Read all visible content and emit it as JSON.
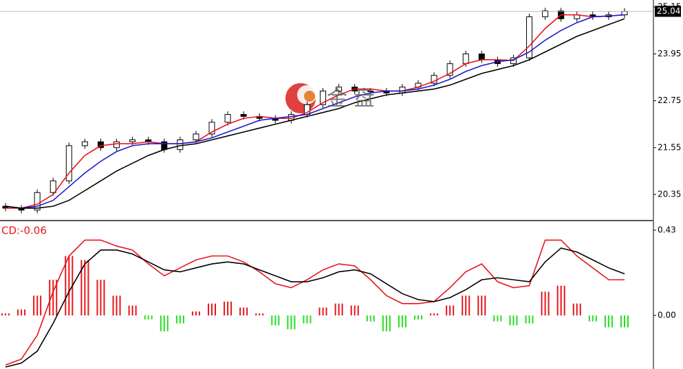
{
  "chart_data": [
    {
      "type": "candlestick",
      "open": [
        20.05,
        20.0,
        19.95,
        20.4,
        20.7,
        21.6,
        21.7,
        21.55,
        21.7,
        21.75,
        21.7,
        21.5,
        21.75,
        21.9,
        22.2,
        22.4,
        22.35,
        22.3,
        22.25,
        22.4,
        22.65,
        23.0,
        23.1,
        23.0,
        23.0,
        22.95,
        23.1,
        23.2,
        23.4,
        23.7,
        23.95,
        23.8,
        23.7,
        23.85,
        24.9,
        25.05,
        24.85,
        24.95,
        24.9,
        24.95
      ],
      "high": [
        20.13,
        20.08,
        20.48,
        20.78,
        21.68,
        21.78,
        21.78,
        21.78,
        21.83,
        21.83,
        21.78,
        21.83,
        21.98,
        22.28,
        22.48,
        22.48,
        22.43,
        22.38,
        22.48,
        22.73,
        23.08,
        23.18,
        23.18,
        23.08,
        23.08,
        23.18,
        23.28,
        23.48,
        23.78,
        24.03,
        24.03,
        23.88,
        23.93,
        24.98,
        25.13,
        25.13,
        25.03,
        25.03,
        25.03,
        25.12
      ],
      "low": [
        19.92,
        19.87,
        19.87,
        20.32,
        20.62,
        21.52,
        21.47,
        21.47,
        21.62,
        21.62,
        21.42,
        21.42,
        21.67,
        21.82,
        22.12,
        22.27,
        22.22,
        22.17,
        22.17,
        22.32,
        22.57,
        22.92,
        22.92,
        22.92,
        22.87,
        22.87,
        23.02,
        23.12,
        23.32,
        23.62,
        23.72,
        23.62,
        23.62,
        23.77,
        24.82,
        24.77,
        24.77,
        24.82,
        24.82,
        24.87
      ],
      "close": [
        20.0,
        19.95,
        20.4,
        20.7,
        21.6,
        21.7,
        21.55,
        21.7,
        21.75,
        21.7,
        21.5,
        21.75,
        21.9,
        22.2,
        22.4,
        22.35,
        22.3,
        22.25,
        22.4,
        22.65,
        23.0,
        23.1,
        23.0,
        23.0,
        22.95,
        23.1,
        23.2,
        23.4,
        23.7,
        23.95,
        23.8,
        23.7,
        23.85,
        24.9,
        25.05,
        24.85,
        24.95,
        24.9,
        24.95,
        25.04
      ],
      "series": [
        {
          "color": "#e8141a",
          "values": [
            20.0,
            20.0,
            20.1,
            20.35,
            20.9,
            21.35,
            21.6,
            21.65,
            21.65,
            21.7,
            21.65,
            21.65,
            21.7,
            21.95,
            22.15,
            22.3,
            22.35,
            22.3,
            22.3,
            22.45,
            22.7,
            22.9,
            23.05,
            23.05,
            23.0,
            23.0,
            23.1,
            23.25,
            23.45,
            23.7,
            23.8,
            23.8,
            23.78,
            24.15,
            24.6,
            24.95,
            24.95,
            24.9,
            24.92,
            24.95
          ]
        },
        {
          "color": "#1a1ad0",
          "values": [
            20.05,
            20.0,
            20.05,
            20.2,
            20.55,
            20.9,
            21.2,
            21.45,
            21.6,
            21.65,
            21.65,
            21.65,
            21.7,
            21.8,
            21.95,
            22.1,
            22.25,
            22.3,
            22.35,
            22.4,
            22.55,
            22.7,
            22.85,
            22.95,
            23.0,
            23.0,
            23.05,
            23.15,
            23.3,
            23.5,
            23.65,
            23.75,
            23.8,
            24.0,
            24.3,
            24.55,
            24.75,
            24.9,
            24.92,
            24.95
          ]
        },
        {
          "color": "#000000",
          "values": [
            20.05,
            20.0,
            20.0,
            20.05,
            20.2,
            20.45,
            20.7,
            20.95,
            21.15,
            21.35,
            21.5,
            21.6,
            21.65,
            21.75,
            21.85,
            21.95,
            22.05,
            22.15,
            22.25,
            22.35,
            22.45,
            22.55,
            22.7,
            22.8,
            22.9,
            22.95,
            23.0,
            23.05,
            23.15,
            23.3,
            23.45,
            23.55,
            23.65,
            23.8,
            24.0,
            24.2,
            24.4,
            24.55,
            24.7,
            24.85
          ]
        }
      ],
      "last_price": 25.04,
      "ylim": [
        19.7,
        25.33
      ],
      "yticks": [
        20.35,
        21.55,
        22.75,
        23.95,
        25.15
      ],
      "watermark": "金 盘"
    },
    {
      "type": "macd",
      "label": "CD:-0.06",
      "values": [
        0.01,
        0.03,
        0.1,
        0.18,
        0.3,
        0.28,
        0.18,
        0.1,
        0.05,
        -0.02,
        -0.08,
        -0.04,
        0.02,
        0.06,
        0.07,
        0.04,
        0.01,
        -0.05,
        -0.07,
        -0.04,
        0.04,
        0.06,
        0.05,
        -0.03,
        -0.08,
        -0.06,
        -0.02,
        0.01,
        0.05,
        0.1,
        0.1,
        -0.03,
        -0.05,
        -0.04,
        0.12,
        0.15,
        0.06,
        -0.03,
        -0.06,
        -0.06
      ],
      "up_color": "#e8141a",
      "down_color": "#22e01e",
      "series": [
        {
          "color": "#e8141a",
          "values": [
            -0.25,
            -0.22,
            -0.1,
            0.12,
            0.3,
            0.38,
            0.38,
            0.35,
            0.33,
            0.26,
            0.2,
            0.24,
            0.28,
            0.3,
            0.3,
            0.27,
            0.22,
            0.16,
            0.14,
            0.18,
            0.23,
            0.26,
            0.25,
            0.18,
            0.1,
            0.06,
            0.06,
            0.07,
            0.14,
            0.22,
            0.26,
            0.17,
            0.14,
            0.15,
            0.38,
            0.38,
            0.3,
            0.24,
            0.18,
            0.18
          ]
        },
        {
          "color": "#000000",
          "values": [
            -0.26,
            -0.24,
            -0.18,
            -0.04,
            0.12,
            0.26,
            0.33,
            0.33,
            0.31,
            0.27,
            0.23,
            0.22,
            0.24,
            0.26,
            0.27,
            0.26,
            0.23,
            0.2,
            0.17,
            0.17,
            0.19,
            0.22,
            0.23,
            0.21,
            0.16,
            0.11,
            0.08,
            0.07,
            0.09,
            0.13,
            0.18,
            0.19,
            0.18,
            0.17,
            0.27,
            0.34,
            0.32,
            0.28,
            0.24,
            0.21
          ]
        }
      ],
      "ylim": [
        -0.27,
        0.475
      ],
      "yticks": [
        {
          "value": 0,
          "label": "0.00"
        },
        0.43
      ]
    }
  ]
}
